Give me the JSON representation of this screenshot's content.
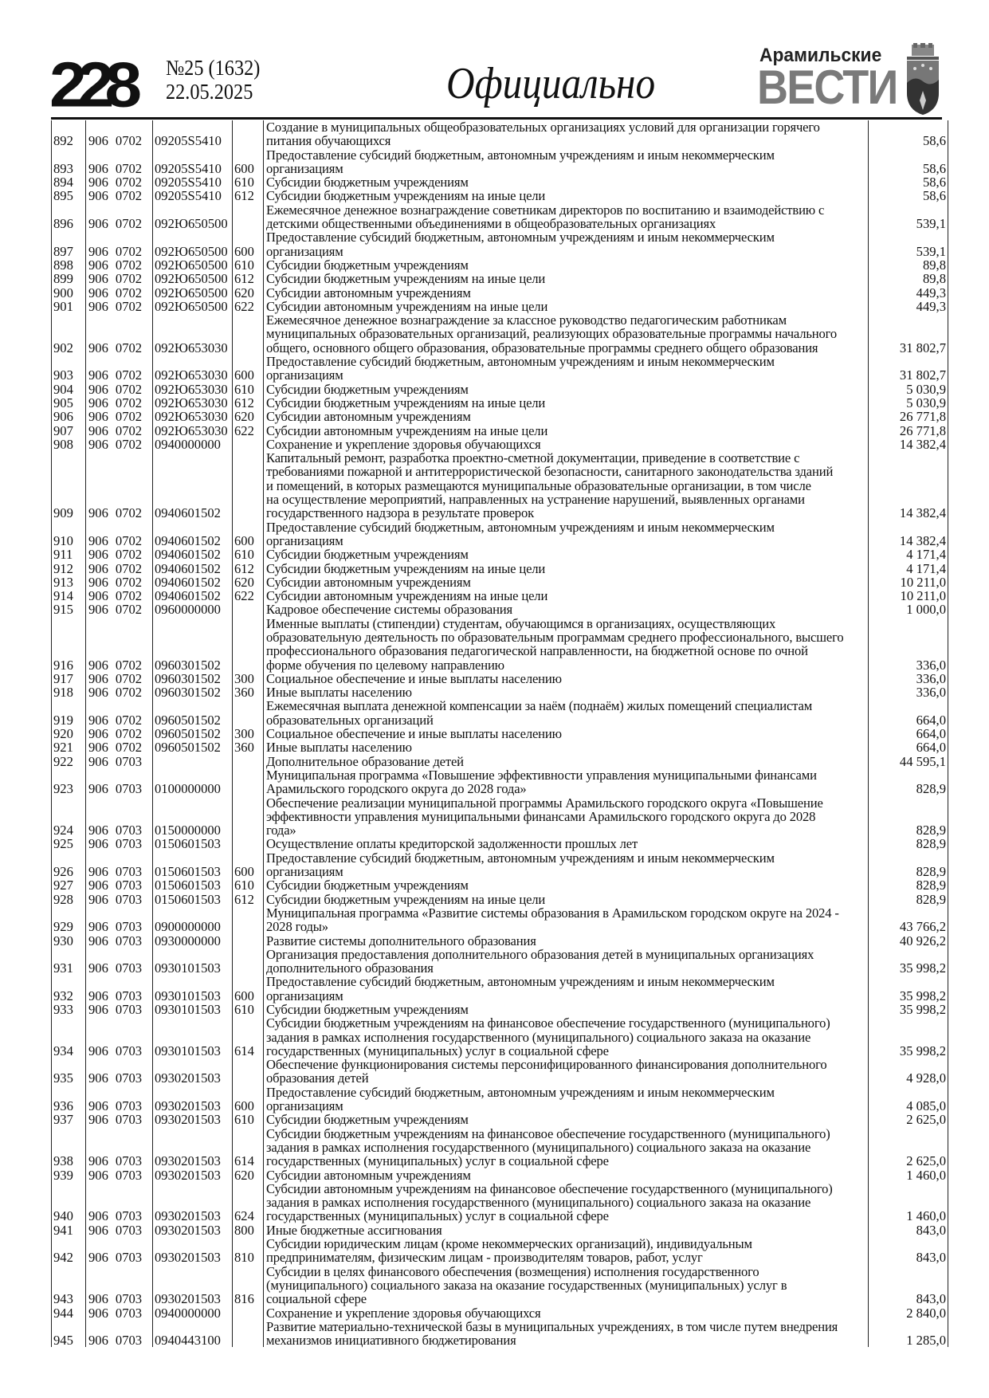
{
  "header": {
    "page_number": "228",
    "issue": "№25 (1632)",
    "date": "22.05.2025",
    "section": "Официально",
    "brand_top": "Арамильские",
    "brand_main": "ВЕСТИ"
  },
  "table": {
    "rows": [
      {
        "n": "892",
        "ved": "906",
        "sec": "0702",
        "code": "09205S5410",
        "kind": "",
        "desc": [
          "Создание в муниципальных общеобразовательных организациях условий для организации горячего",
          "питания обучающихся"
        ],
        "amt": "58,6"
      },
      {
        "n": "893",
        "ved": "906",
        "sec": "0702",
        "code": "09205S5410",
        "kind": "600",
        "desc": [
          "Предоставление субсидий бюджетным, автономным учреждениям и иным некоммерческим",
          "организациям"
        ],
        "amt": "58,6"
      },
      {
        "n": "894",
        "ved": "906",
        "sec": "0702",
        "code": "09205S5410",
        "kind": "610",
        "desc": [
          "Субсидии бюджетным учреждениям"
        ],
        "amt": "58,6"
      },
      {
        "n": "895",
        "ved": "906",
        "sec": "0702",
        "code": "09205S5410",
        "kind": "612",
        "desc": [
          "Субсидии бюджетным учреждениям на иные цели"
        ],
        "amt": "58,6"
      },
      {
        "n": "896",
        "ved": "906",
        "sec": "0702",
        "code": "092Ю650500",
        "kind": "",
        "desc": [
          "Ежемесячное денежное вознаграждение советникам директоров по воспитанию и взаимодействию с",
          "детскими общественными объединениями в общеобразовательных организациях"
        ],
        "amt": "539,1"
      },
      {
        "n": "897",
        "ved": "906",
        "sec": "0702",
        "code": "092Ю650500",
        "kind": "600",
        "desc": [
          "Предоставление субсидий бюджетным, автономным учреждениям и иным некоммерческим",
          "организациям"
        ],
        "amt": "539,1"
      },
      {
        "n": "898",
        "ved": "906",
        "sec": "0702",
        "code": "092Ю650500",
        "kind": "610",
        "desc": [
          "Субсидии бюджетным учреждениям"
        ],
        "amt": "89,8"
      },
      {
        "n": "899",
        "ved": "906",
        "sec": "0702",
        "code": "092Ю650500",
        "kind": "612",
        "desc": [
          "Субсидии бюджетным учреждениям на иные цели"
        ],
        "amt": "89,8"
      },
      {
        "n": "900",
        "ved": "906",
        "sec": "0702",
        "code": "092Ю650500",
        "kind": "620",
        "desc": [
          "Субсидии автономным учреждениям"
        ],
        "amt": "449,3"
      },
      {
        "n": "901",
        "ved": "906",
        "sec": "0702",
        "code": "092Ю650500",
        "kind": "622",
        "desc": [
          "Субсидии автономным учреждениям на иные цели"
        ],
        "amt": "449,3"
      },
      {
        "n": "902",
        "ved": "906",
        "sec": "0702",
        "code": "092Ю653030",
        "kind": "",
        "desc": [
          "Ежемесячное денежное вознаграждение за классное руководство педагогическим работникам",
          "муниципальных образовательных организаций, реализующих образовательные программы начального",
          "общего, основного общего образования, образовательные программы среднего общего образования"
        ],
        "amt": "31 802,7"
      },
      {
        "n": "903",
        "ved": "906",
        "sec": "0702",
        "code": "092Ю653030",
        "kind": "600",
        "desc": [
          "Предоставление субсидий бюджетным, автономным учреждениям и иным некоммерческим",
          "организациям"
        ],
        "amt": "31 802,7"
      },
      {
        "n": "904",
        "ved": "906",
        "sec": "0702",
        "code": "092Ю653030",
        "kind": "610",
        "desc": [
          "Субсидии бюджетным учреждениям"
        ],
        "amt": "5 030,9"
      },
      {
        "n": "905",
        "ved": "906",
        "sec": "0702",
        "code": "092Ю653030",
        "kind": "612",
        "desc": [
          "Субсидии бюджетным учреждениям на иные цели"
        ],
        "amt": "5 030,9"
      },
      {
        "n": "906",
        "ved": "906",
        "sec": "0702",
        "code": "092Ю653030",
        "kind": "620",
        "desc": [
          "Субсидии автономным учреждениям"
        ],
        "amt": "26 771,8"
      },
      {
        "n": "907",
        "ved": "906",
        "sec": "0702",
        "code": "092Ю653030",
        "kind": "622",
        "desc": [
          "Субсидии автономным учреждениям на иные цели"
        ],
        "amt": "26 771,8"
      },
      {
        "n": "908",
        "ved": "906",
        "sec": "0702",
        "code": "0940000000",
        "kind": "",
        "desc": [
          "Сохранение и укрепление здоровья обучающихся"
        ],
        "amt": "14 382,4"
      },
      {
        "n": "909",
        "ved": "906",
        "sec": "0702",
        "code": "0940601502",
        "kind": "",
        "desc": [
          "Капитальный ремонт, разработка проектно-сметной документации, приведение в соответствие с",
          "требованиями пожарной и антитеррористической безопасности, санитарного законодательства зданий",
          "и помещений, в которых размещаются муниципальные образовательные организации, в том числе",
          "на осуществление мероприятий, направленных на устранение нарушений, выявленных органами",
          "государственного надзора в результате проверок"
        ],
        "amt": "14 382,4"
      },
      {
        "n": "910",
        "ved": "906",
        "sec": "0702",
        "code": "0940601502",
        "kind": "600",
        "desc": [
          "Предоставление субсидий бюджетным, автономным учреждениям и иным некоммерческим",
          "организациям"
        ],
        "amt": "14 382,4"
      },
      {
        "n": "911",
        "ved": "906",
        "sec": "0702",
        "code": "0940601502",
        "kind": "610",
        "desc": [
          "Субсидии бюджетным учреждениям"
        ],
        "amt": "4 171,4"
      },
      {
        "n": "912",
        "ved": "906",
        "sec": "0702",
        "code": "0940601502",
        "kind": "612",
        "desc": [
          "Субсидии бюджетным учреждениям на иные цели"
        ],
        "amt": "4 171,4"
      },
      {
        "n": "913",
        "ved": "906",
        "sec": "0702",
        "code": "0940601502",
        "kind": "620",
        "desc": [
          "Субсидии автономным учреждениям"
        ],
        "amt": "10 211,0"
      },
      {
        "n": "914",
        "ved": "906",
        "sec": "0702",
        "code": "0940601502",
        "kind": "622",
        "desc": [
          "Субсидии автономным учреждениям на иные цели"
        ],
        "amt": "10 211,0"
      },
      {
        "n": "915",
        "ved": "906",
        "sec": "0702",
        "code": "0960000000",
        "kind": "",
        "desc": [
          "Кадровое обеспечение системы образования"
        ],
        "amt": "1 000,0"
      },
      {
        "n": "916",
        "ved": "906",
        "sec": "0702",
        "code": "0960301502",
        "kind": "",
        "desc": [
          "Именные выплаты (стипендии) студентам, обучающимся в организациях, осуществляющих",
          "образовательную деятельность по образовательным программам среднего профессионального, высшего",
          "профессионального образования педагогической направленности, на бюджетной основе по очной",
          "форме обучения по целевому направлению"
        ],
        "amt": "336,0"
      },
      {
        "n": "917",
        "ved": "906",
        "sec": "0702",
        "code": "0960301502",
        "kind": "300",
        "desc": [
          "Социальное обеспечение и иные выплаты населению"
        ],
        "amt": "336,0"
      },
      {
        "n": "918",
        "ved": "906",
        "sec": "0702",
        "code": "0960301502",
        "kind": "360",
        "desc": [
          "Иные выплаты населению"
        ],
        "amt": "336,0"
      },
      {
        "n": "919",
        "ved": "906",
        "sec": "0702",
        "code": "0960501502",
        "kind": "",
        "desc": [
          "Ежемесячная выплата денежной компенсации за наём (поднаём) жилых помещений специалистам",
          "образовательных организаций"
        ],
        "amt": "664,0"
      },
      {
        "n": "920",
        "ved": "906",
        "sec": "0702",
        "code": "0960501502",
        "kind": "300",
        "desc": [
          "Социальное обеспечение и иные выплаты населению"
        ],
        "amt": "664,0"
      },
      {
        "n": "921",
        "ved": "906",
        "sec": "0702",
        "code": "0960501502",
        "kind": "360",
        "desc": [
          "Иные выплаты населению"
        ],
        "amt": "664,0"
      },
      {
        "n": "922",
        "ved": "906",
        "sec": "0703",
        "code": "",
        "kind": "",
        "desc": [
          "Дополнительное образование детей"
        ],
        "amt": "44 595,1"
      },
      {
        "n": "923",
        "ved": "906",
        "sec": "0703",
        "code": "0100000000",
        "kind": "",
        "desc": [
          "Муниципальная программа «Повышение эффективности управления муниципальными финансами",
          "Арамильского городского округа до 2028 года»"
        ],
        "amt": "828,9"
      },
      {
        "n": "924",
        "ved": "906",
        "sec": "0703",
        "code": "0150000000",
        "kind": "",
        "desc": [
          "Обеспечение реализации муниципальной программы Арамильского городского округа «Повышение",
          "эффективности управления муниципальными финансами Арамильского городского округа до 2028",
          "года»"
        ],
        "amt": "828,9"
      },
      {
        "n": "925",
        "ved": "906",
        "sec": "0703",
        "code": "0150601503",
        "kind": "",
        "desc": [
          "Осуществление оплаты кредиторской задолженности прошлых лет"
        ],
        "amt": "828,9"
      },
      {
        "n": "926",
        "ved": "906",
        "sec": "0703",
        "code": "0150601503",
        "kind": "600",
        "desc": [
          "Предоставление субсидий бюджетным, автономным учреждениям и иным некоммерческим",
          "организациям"
        ],
        "amt": "828,9"
      },
      {
        "n": "927",
        "ved": "906",
        "sec": "0703",
        "code": "0150601503",
        "kind": "610",
        "desc": [
          "Субсидии бюджетным учреждениям"
        ],
        "amt": "828,9"
      },
      {
        "n": "928",
        "ved": "906",
        "sec": "0703",
        "code": "0150601503",
        "kind": "612",
        "desc": [
          "Субсидии бюджетным учреждениям на иные цели"
        ],
        "amt": "828,9"
      },
      {
        "n": "929",
        "ved": "906",
        "sec": "0703",
        "code": "0900000000",
        "kind": "",
        "desc": [
          "Муниципальная программа «Развитие системы образования в Арамильском городском округе на 2024 -",
          "2028 годы»"
        ],
        "amt": "43 766,2"
      },
      {
        "n": "930",
        "ved": "906",
        "sec": "0703",
        "code": "0930000000",
        "kind": "",
        "desc": [
          "Развитие системы дополнительного образования"
        ],
        "amt": "40 926,2"
      },
      {
        "n": "931",
        "ved": "906",
        "sec": "0703",
        "code": "0930101503",
        "kind": "",
        "desc": [
          "Организация предоставления дополнительного образования детей в муниципальных организациях",
          "дополнительного образования"
        ],
        "amt": "35 998,2"
      },
      {
        "n": "932",
        "ved": "906",
        "sec": "0703",
        "code": "0930101503",
        "kind": "600",
        "desc": [
          "Предоставление субсидий бюджетным, автономным учреждениям и иным некоммерческим",
          "организациям"
        ],
        "amt": "35 998,2"
      },
      {
        "n": "933",
        "ved": "906",
        "sec": "0703",
        "code": "0930101503",
        "kind": "610",
        "desc": [
          "Субсидии бюджетным учреждениям"
        ],
        "amt": "35 998,2"
      },
      {
        "n": "934",
        "ved": "906",
        "sec": "0703",
        "code": "0930101503",
        "kind": "614",
        "desc": [
          "Субсидии бюджетным учреждениям на финансовое обеспечение государственного (муниципального)",
          "задания в рамках исполнения государственного (муниципального) социального заказа на оказание",
          "государственных (муниципальных) услуг в социальной сфере"
        ],
        "amt": "35 998,2"
      },
      {
        "n": "935",
        "ved": "906",
        "sec": "0703",
        "code": "0930201503",
        "kind": "",
        "desc": [
          "Обеспечение функционирования системы персонифицированного финансирования дополнительного",
          "образования детей"
        ],
        "amt": "4 928,0"
      },
      {
        "n": "936",
        "ved": "906",
        "sec": "0703",
        "code": "0930201503",
        "kind": "600",
        "desc": [
          "Предоставление субсидий бюджетным, автономным учреждениям и иным некоммерческим",
          "организациям"
        ],
        "amt": "4 085,0"
      },
      {
        "n": "937",
        "ved": "906",
        "sec": "0703",
        "code": "0930201503",
        "kind": "610",
        "desc": [
          "Субсидии бюджетным учреждениям"
        ],
        "amt": "2 625,0"
      },
      {
        "n": "938",
        "ved": "906",
        "sec": "0703",
        "code": "0930201503",
        "kind": "614",
        "desc": [
          "Субсидии бюджетным учреждениям на финансовое обеспечение государственного (муниципального)",
          "задания в рамках исполнения государственного (муниципального) социального заказа на оказание",
          "государственных (муниципальных) услуг в социальной сфере"
        ],
        "amt": "2 625,0"
      },
      {
        "n": "939",
        "ved": "906",
        "sec": "0703",
        "code": "0930201503",
        "kind": "620",
        "desc": [
          "Субсидии автономным учреждениям"
        ],
        "amt": "1 460,0"
      },
      {
        "n": "940",
        "ved": "906",
        "sec": "0703",
        "code": "0930201503",
        "kind": "624",
        "desc": [
          "Субсидии автономным учреждениям на финансовое обеспечение государственного (муниципального)",
          "задания в рамках исполнения государственного (муниципального) социального заказа на оказание",
          "государственных (муниципальных) услуг в социальной сфере"
        ],
        "amt": "1 460,0"
      },
      {
        "n": "941",
        "ved": "906",
        "sec": "0703",
        "code": "0930201503",
        "kind": "800",
        "desc": [
          "Иные бюджетные ассигнования"
        ],
        "amt": "843,0"
      },
      {
        "n": "942",
        "ved": "906",
        "sec": "0703",
        "code": "0930201503",
        "kind": "810",
        "desc": [
          "Субсидии юридическим лицам (кроме некоммерческих организаций), индивидуальным",
          "предпринимателям, физическим лицам - производителям товаров, работ, услуг"
        ],
        "amt": "843,0"
      },
      {
        "n": "943",
        "ved": "906",
        "sec": "0703",
        "code": "0930201503",
        "kind": "816",
        "desc": [
          "Субсидии в целях финансового обеспечения (возмещения) исполнения государственного",
          "(муниципального) социального заказа на оказание государственных (муниципальных) услуг в",
          "социальной сфере"
        ],
        "amt": "843,0"
      },
      {
        "n": "944",
        "ved": "906",
        "sec": "0703",
        "code": "0940000000",
        "kind": "",
        "desc": [
          "Сохранение и укрепление здоровья обучающихся"
        ],
        "amt": "2 840,0"
      },
      {
        "n": "945",
        "ved": "906",
        "sec": "0703",
        "code": "0940443100",
        "kind": "",
        "desc": [
          "Развитие материально-технической базы в муниципальных учреждениях, в том числе путем внедрения",
          "механизмов инициативного бюджетирования"
        ],
        "amt": "1 285,0"
      }
    ]
  }
}
